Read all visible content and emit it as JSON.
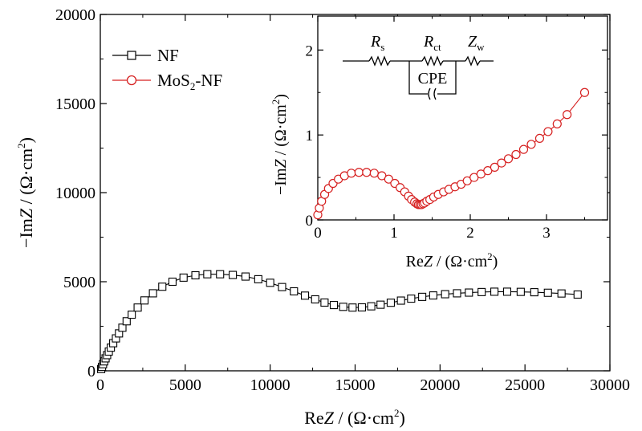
{
  "chart_data": [
    {
      "type": "scatter",
      "xlabel_prefix": "Re",
      "xlabel_var": "Z",
      "xlabel_suffix": " / (Ω·cm",
      "xlabel_sup": "2",
      "xlabel_close": ")",
      "ylabel_prefix": "−Im",
      "ylabel_var": "Z",
      "ylabel_suffix": " / (Ω·cm",
      "ylabel_sup": "2",
      "ylabel_close": ")",
      "xlim": [
        0,
        30000
      ],
      "ylim": [
        0,
        20000
      ],
      "xticks": [
        "0",
        "5000",
        "10000",
        "15000",
        "20000",
        "25000",
        "30000"
      ],
      "yticks": [
        "0",
        "5000",
        "10000",
        "15000",
        "20000"
      ],
      "legend_position": "top-left",
      "series": [
        {
          "name": "NF",
          "color": "#000000",
          "marker": "square",
          "x": [
            50,
            100,
            160,
            230,
            310,
            400,
            500,
            620,
            760,
            920,
            1100,
            1300,
            1550,
            1850,
            2200,
            2600,
            3100,
            3650,
            4250,
            4900,
            5600,
            6300,
            7050,
            7800,
            8550,
            9300,
            10000,
            10700,
            11400,
            12050,
            12650,
            13200,
            13750,
            14300,
            14850,
            15400,
            15950,
            16500,
            17100,
            17700,
            18300,
            18950,
            19600,
            20300,
            21000,
            21700,
            22450,
            23200,
            23950,
            24750,
            25550,
            26350,
            27150,
            28100
          ],
          "y": [
            100,
            220,
            370,
            530,
            700,
            880,
            1080,
            1300,
            1550,
            1820,
            2100,
            2420,
            2780,
            3150,
            3550,
            3950,
            4350,
            4720,
            5000,
            5230,
            5360,
            5420,
            5420,
            5380,
            5290,
            5140,
            4940,
            4700,
            4460,
            4220,
            4010,
            3830,
            3690,
            3590,
            3550,
            3560,
            3620,
            3710,
            3820,
            3940,
            4050,
            4150,
            4230,
            4300,
            4350,
            4390,
            4420,
            4440,
            4440,
            4430,
            4410,
            4380,
            4340,
            4280
          ]
        },
        {
          "name": "MoS",
          "name_sub": "2",
          "name_suffix": "-NF",
          "color": "#d62020",
          "marker": "circle"
        }
      ]
    },
    {
      "type": "scatter",
      "position": "inset-top-right",
      "xlabel_prefix": "Re",
      "xlabel_var": "Z",
      "xlabel_suffix": " / (Ω·cm",
      "xlabel_sup": "2",
      "xlabel_close": ")",
      "ylabel_prefix": "−Im",
      "ylabel_var": "Z",
      "ylabel_suffix": " / (Ω·cm",
      "ylabel_sup": "2",
      "ylabel_close": ")",
      "xlim": [
        0,
        3.8
      ],
      "ylim": [
        0,
        2.4
      ],
      "xticks": [
        "0",
        "1",
        "2",
        "3"
      ],
      "yticks": [
        "0",
        "1",
        "2"
      ],
      "series": [
        {
          "name": "MoS2-NF",
          "color": "#d62020",
          "marker": "circle",
          "x": [
            0.0,
            0.02,
            0.05,
            0.09,
            0.14,
            0.2,
            0.27,
            0.35,
            0.44,
            0.54,
            0.64,
            0.74,
            0.84,
            0.93,
            1.01,
            1.08,
            1.14,
            1.19,
            1.23,
            1.27,
            1.3,
            1.32,
            1.34,
            1.36,
            1.38,
            1.4,
            1.43,
            1.47,
            1.52,
            1.58,
            1.65,
            1.72,
            1.8,
            1.88,
            1.96,
            2.05,
            2.14,
            2.23,
            2.32,
            2.41,
            2.5,
            2.6,
            2.7,
            2.8,
            2.91,
            3.02,
            3.14,
            3.27,
            3.5
          ],
          "y": [
            0.06,
            0.14,
            0.22,
            0.3,
            0.37,
            0.43,
            0.48,
            0.52,
            0.55,
            0.56,
            0.56,
            0.55,
            0.52,
            0.48,
            0.43,
            0.38,
            0.33,
            0.28,
            0.24,
            0.21,
            0.19,
            0.18,
            0.18,
            0.18,
            0.19,
            0.2,
            0.22,
            0.24,
            0.27,
            0.3,
            0.33,
            0.36,
            0.39,
            0.42,
            0.46,
            0.5,
            0.54,
            0.58,
            0.62,
            0.67,
            0.72,
            0.77,
            0.83,
            0.89,
            0.96,
            1.04,
            1.13,
            1.24,
            1.5
          ]
        }
      ]
    }
  ],
  "circuit": {
    "rs_main": "R",
    "rs_sub": "s",
    "rct_main": "R",
    "rct_sub": "ct",
    "zw_main": "Z",
    "zw_sub": "w",
    "cpe": "CPE"
  }
}
